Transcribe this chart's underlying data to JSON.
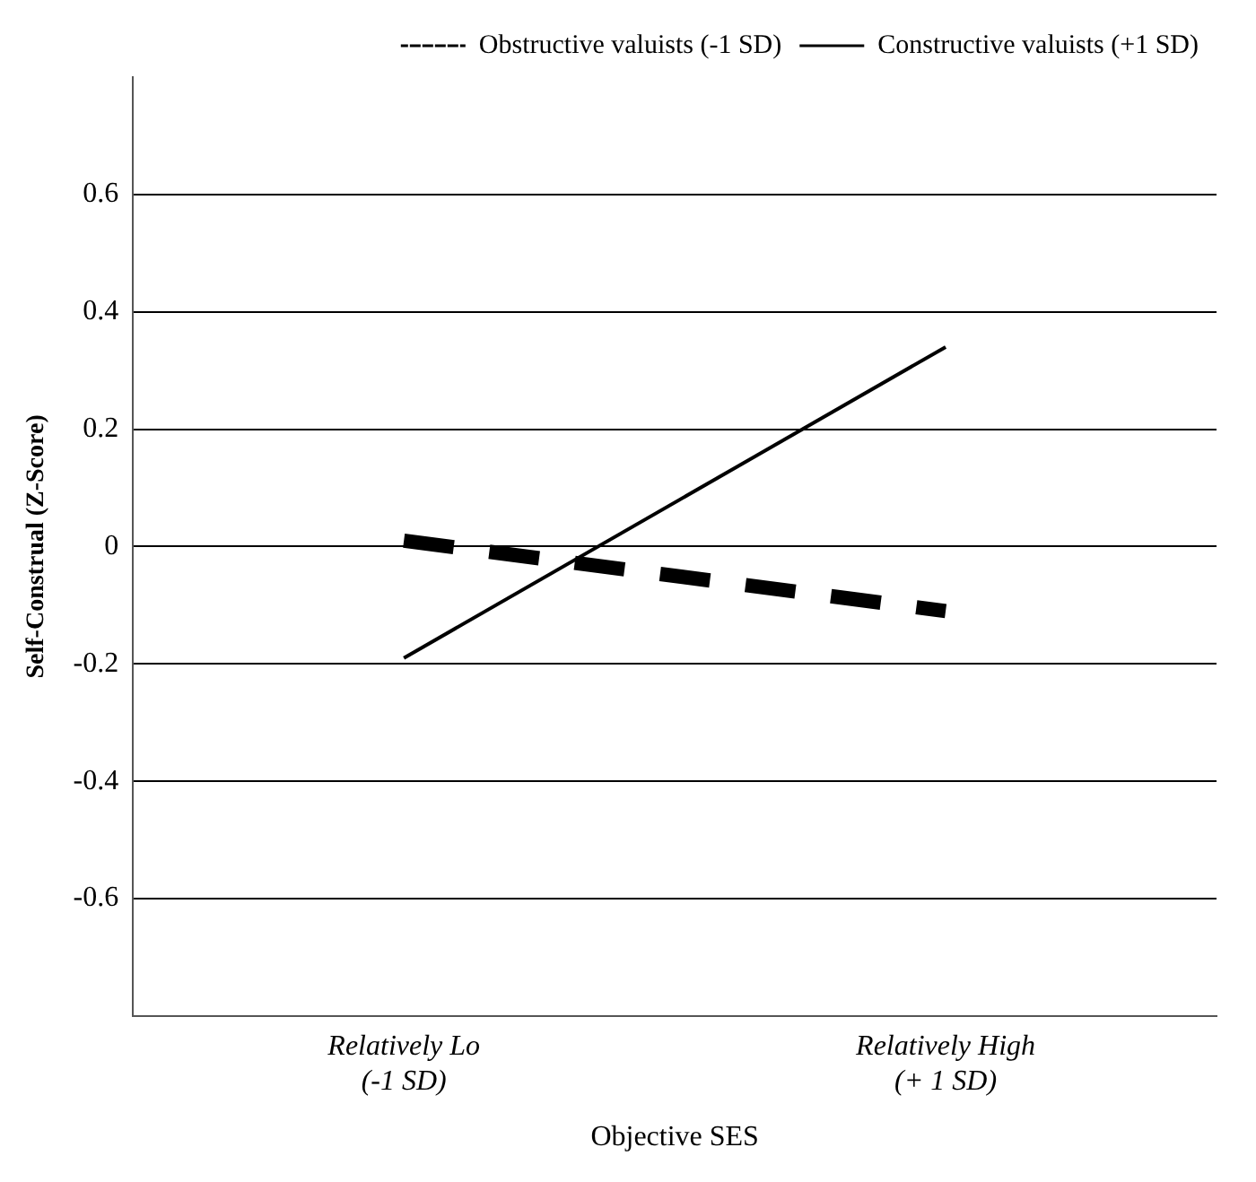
{
  "chart_data": {
    "type": "line",
    "xlabel": "Objective SES",
    "ylabel": "Self-Construal (Z-Score)",
    "categories": [
      "Relatively Lo (-1 SD)",
      "Relatively High (+ 1 SD)"
    ],
    "series": [
      {
        "name": "Obstructive valuists (-1 SD)",
        "color": "#000000",
        "values": [
          0.01,
          -0.11
        ],
        "line_style": "dashed"
      },
      {
        "name": "Constructive valuists (+1 SD)",
        "color": "#000000",
        "values": [
          -0.19,
          0.34
        ],
        "line_style": "solid"
      }
    ],
    "ylim": [
      -0.8,
      0.8
    ],
    "yticks": [
      -0.6,
      -0.4,
      -0.2,
      0,
      0.2,
      0.4,
      0.6
    ],
    "grid": "y",
    "legend": "top right",
    "marker": "none"
  }
}
